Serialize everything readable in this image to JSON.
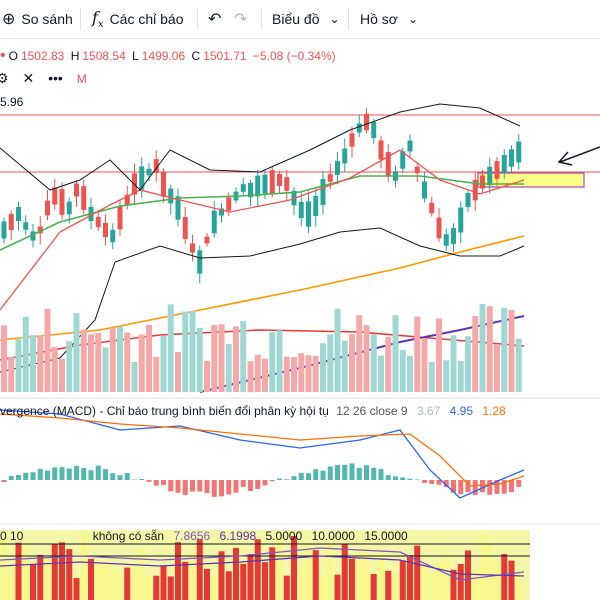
{
  "toolbar": {
    "compare_label": "So sánh",
    "indicators_label": "Các chỉ báo",
    "chart_type_label": "Biểu đồ",
    "profile_label": "Hồ sơ"
  },
  "ohlc": {
    "o": "1502.83",
    "h": "1508.54",
    "l": "1499.06",
    "c": "1501.71",
    "change": "−5.08 (−0.34%)"
  },
  "ma_value_label": "5.96",
  "macd_legend": {
    "name": "vergence (MACD) - Chỉ báo trung bình biến đổi phân kỳ hội tụ",
    "params": "12 26 close 9",
    "v1": "3.67",
    "v2": "4.95",
    "v3": "1.28"
  },
  "rsi_legend": {
    "params": "0 10",
    "na": "không có sẵn",
    "v1": "7.8656",
    "v2": "6.1998",
    "v3": "5.0000",
    "v4": "10.0000",
    "v5": "15.0000"
  },
  "colors": {
    "up": "#26a69a",
    "down": "#ef5350",
    "ma_fast": "#ef5350",
    "ma_mid": "#4caf50",
    "ma_slow": "#ff9800",
    "ma_very_slow": "#e53935",
    "ma_longest": "#5e35b1",
    "bollinger": "#131722",
    "macd_line": "#2962ff",
    "signal_line": "#ff6d00",
    "highlight_box": "#ffff88",
    "highlight_border": "#ab47bc"
  },
  "chart_data": {
    "type": "candlestick",
    "price_candles": [
      [
        0,
        1
      ],
      [
        1,
        1
      ],
      [
        0,
        0
      ],
      [
        1,
        1
      ],
      [
        1,
        0
      ],
      [
        0,
        1
      ],
      [
        1,
        1
      ],
      [
        0,
        1
      ],
      [
        1,
        0
      ],
      [
        0,
        1
      ]
    ],
    "horizontal_levels_note": "",
    "macd": {
      "fast": 12,
      "slow": 26,
      "source": "close",
      "signal": 9
    }
  }
}
